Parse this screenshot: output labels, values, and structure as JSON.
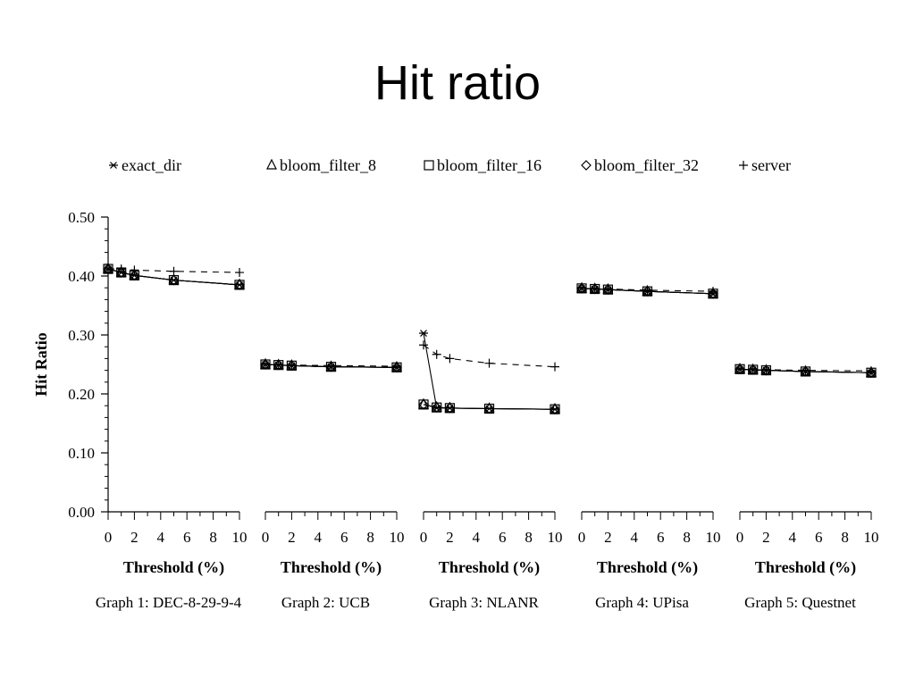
{
  "title": "Hit ratio",
  "chart_data": {
    "type": "line",
    "ylabel": "Hit Ratio",
    "ylim": [
      0,
      0.5
    ],
    "y_ticks": [
      "0.00",
      "0.10",
      "0.20",
      "0.30",
      "0.40",
      "0.50"
    ],
    "x_ticks": [
      "0",
      "2",
      "4",
      "6",
      "8",
      "10"
    ],
    "xlim": [
      0,
      10
    ],
    "legend": [
      {
        "name": "exact_dir",
        "marker": "asterisk"
      },
      {
        "name": "bloom_filter_8",
        "marker": "triangle"
      },
      {
        "name": "bloom_filter_16",
        "marker": "square"
      },
      {
        "name": "bloom_filter_32",
        "marker": "diamond"
      },
      {
        "name": "server",
        "marker": "plus"
      }
    ],
    "panels": [
      {
        "xlabel": "Threshold (%)",
        "caption": "Graph 1: DEC-8-29-9-4",
        "x": [
          0,
          1,
          2,
          5,
          10
        ],
        "series": [
          {
            "name": "exact_dir",
            "values": [
              0.412,
              0.406,
              0.401,
              0.393,
              0.385
            ]
          },
          {
            "name": "bloom_filter_8",
            "values": [
              0.412,
              0.406,
              0.401,
              0.393,
              0.385
            ]
          },
          {
            "name": "bloom_filter_16",
            "values": [
              0.412,
              0.406,
              0.401,
              0.393,
              0.385
            ]
          },
          {
            "name": "bloom_filter_32",
            "values": [
              0.412,
              0.406,
              0.401,
              0.393,
              0.385
            ]
          },
          {
            "name": "server",
            "values": [
              0.412,
              0.412,
              0.41,
              0.408,
              0.406
            ]
          }
        ]
      },
      {
        "xlabel": "Threshold (%)",
        "caption": "Graph 2: UCB",
        "x": [
          0,
          1,
          2,
          5,
          10
        ],
        "series": [
          {
            "name": "exact_dir",
            "values": [
              0.25,
              0.249,
              0.248,
              0.246,
              0.245
            ]
          },
          {
            "name": "bloom_filter_8",
            "values": [
              0.25,
              0.249,
              0.248,
              0.246,
              0.245
            ]
          },
          {
            "name": "bloom_filter_16",
            "values": [
              0.25,
              0.249,
              0.248,
              0.246,
              0.245
            ]
          },
          {
            "name": "bloom_filter_32",
            "values": [
              0.25,
              0.249,
              0.248,
              0.246,
              0.245
            ]
          },
          {
            "name": "server",
            "values": [
              0.25,
              0.249,
              0.249,
              0.248,
              0.247
            ]
          }
        ]
      },
      {
        "xlabel": "Threshold (%)",
        "caption": "Graph 3: NLANR",
        "x": [
          0,
          1,
          2,
          5,
          10
        ],
        "series": [
          {
            "name": "exact_dir",
            "values": [
              0.303,
              0.176,
              0.176,
              0.175,
              0.174
            ]
          },
          {
            "name": "bloom_filter_8",
            "values": [
              0.182,
              0.177,
              0.176,
              0.175,
              0.174
            ]
          },
          {
            "name": "bloom_filter_16",
            "values": [
              0.182,
              0.177,
              0.176,
              0.175,
              0.174
            ]
          },
          {
            "name": "bloom_filter_32",
            "values": [
              0.182,
              0.177,
              0.176,
              0.175,
              0.174
            ]
          },
          {
            "name": "server",
            "values": [
              0.283,
              0.267,
              0.26,
              0.252,
              0.246
            ]
          }
        ]
      },
      {
        "xlabel": "Threshold (%)",
        "caption": "Graph 4: UPisa",
        "x": [
          0,
          1,
          2,
          5,
          10
        ],
        "series": [
          {
            "name": "exact_dir",
            "values": [
              0.379,
              0.378,
              0.377,
              0.374,
              0.37
            ]
          },
          {
            "name": "bloom_filter_8",
            "values": [
              0.379,
              0.378,
              0.377,
              0.374,
              0.37
            ]
          },
          {
            "name": "bloom_filter_16",
            "values": [
              0.379,
              0.378,
              0.377,
              0.374,
              0.37
            ]
          },
          {
            "name": "bloom_filter_32",
            "values": [
              0.379,
              0.378,
              0.377,
              0.374,
              0.37
            ]
          },
          {
            "name": "server",
            "values": [
              0.379,
              0.378,
              0.378,
              0.376,
              0.374
            ]
          }
        ]
      },
      {
        "xlabel": "Threshold (%)",
        "caption": "Graph 5: Questnet",
        "x": [
          0,
          1,
          2,
          5,
          10
        ],
        "series": [
          {
            "name": "exact_dir",
            "values": [
              0.242,
              0.241,
              0.24,
              0.238,
              0.236
            ]
          },
          {
            "name": "bloom_filter_8",
            "values": [
              0.242,
              0.241,
              0.24,
              0.238,
              0.236
            ]
          },
          {
            "name": "bloom_filter_16",
            "values": [
              0.242,
              0.241,
              0.24,
              0.238,
              0.236
            ]
          },
          {
            "name": "bloom_filter_32",
            "values": [
              0.242,
              0.241,
              0.24,
              0.238,
              0.236
            ]
          },
          {
            "name": "server",
            "values": [
              0.242,
              0.241,
              0.241,
              0.24,
              0.239
            ]
          }
        ]
      }
    ]
  }
}
